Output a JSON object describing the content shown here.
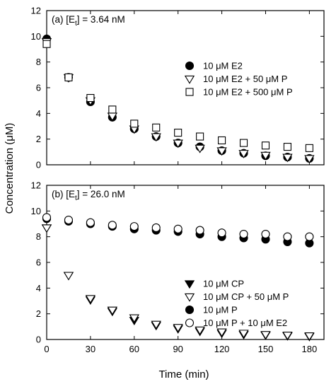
{
  "chart_data": {
    "type": "scatter",
    "xlabel": "Time (min)",
    "ylabel": "Concentration (μM)",
    "xlim": [
      0,
      190
    ],
    "xticks": [
      0,
      30,
      60,
      90,
      120,
      150,
      180
    ],
    "shared_x": true,
    "panels": [
      {
        "label_prefix": "(a) [E",
        "label_sub": "t",
        "label_suffix": "] = 3.64 nM",
        "ylim": [
          0,
          12
        ],
        "yticks": [
          0,
          2,
          4,
          6,
          8,
          10,
          12
        ],
        "legend_position": "right-middle",
        "series": [
          {
            "name": "10 μM E2",
            "marker": "filled-circle",
            "x": [
              0,
              15,
              30,
              45,
              60,
              75,
              90,
              105,
              120,
              135,
              150,
              165,
              180
            ],
            "y": [
              9.8,
              6.8,
              4.9,
              3.7,
              2.8,
              2.2,
              1.7,
              1.4,
              1.1,
              0.9,
              0.7,
              0.6,
              0.5
            ]
          },
          {
            "name": "10 μM E2 + 50 μM P",
            "marker": "open-triangle-down",
            "x": [
              0,
              15,
              30,
              45,
              60,
              75,
              90,
              105,
              120,
              135,
              150,
              165,
              180
            ],
            "y": [
              9.6,
              6.8,
              5.0,
              3.8,
              2.8,
              2.2,
              1.7,
              1.3,
              1.1,
              0.9,
              0.75,
              0.6,
              0.5
            ]
          },
          {
            "name": "10 μM E2 + 500 μM P",
            "marker": "open-square",
            "x": [
              0,
              15,
              30,
              45,
              60,
              75,
              90,
              105,
              120,
              135,
              150,
              165,
              180
            ],
            "y": [
              9.4,
              6.8,
              5.2,
              4.3,
              3.2,
              2.9,
              2.5,
              2.2,
              1.9,
              1.7,
              1.5,
              1.4,
              1.3
            ]
          }
        ]
      },
      {
        "label_prefix": "(b) [E",
        "label_sub": "t",
        "label_suffix": "] = 26.0 nM",
        "ylim": [
          0,
          12
        ],
        "yticks": [
          0,
          2,
          4,
          6,
          8,
          10,
          12
        ],
        "legend_position": "bottom-right",
        "series": [
          {
            "name": "10 μM CP",
            "marker": "filled-triangle-down",
            "x": [
              0,
              15,
              30,
              45,
              60,
              75,
              90,
              105,
              120,
              135,
              150,
              165,
              180
            ],
            "y": [
              8.7,
              5.0,
              3.1,
              2.2,
              1.5,
              1.1,
              0.85,
              0.65,
              0.5,
              0.4,
              0.35,
              0.3,
              0.25
            ]
          },
          {
            "name": "10 μM CP + 50 μM P",
            "marker": "open-triangle-down",
            "x": [
              0,
              15,
              30,
              45,
              60,
              75,
              90,
              105,
              120,
              135,
              150,
              165,
              180
            ],
            "y": [
              8.7,
              5.0,
              3.2,
              2.3,
              1.7,
              1.2,
              0.95,
              0.75,
              0.6,
              0.5,
              0.4,
              0.35,
              0.3
            ]
          },
          {
            "name": "10 μM P",
            "marker": "filled-circle",
            "x": [
              0,
              15,
              30,
              45,
              60,
              75,
              90,
              105,
              120,
              135,
              150,
              165,
              180
            ],
            "y": [
              9.4,
              9.2,
              9.0,
              8.8,
              8.6,
              8.5,
              8.4,
              8.2,
              8.0,
              7.9,
              7.8,
              7.6,
              7.5
            ]
          },
          {
            "name": "10 μM P + 10 μM E2",
            "marker": "open-circle",
            "x": [
              0,
              15,
              30,
              45,
              60,
              75,
              90,
              105,
              120,
              135,
              150,
              165,
              180
            ],
            "y": [
              9.5,
              9.3,
              9.1,
              8.9,
              8.8,
              8.7,
              8.6,
              8.5,
              8.3,
              8.2,
              8.2,
              8.0,
              8.0
            ]
          }
        ]
      }
    ]
  }
}
